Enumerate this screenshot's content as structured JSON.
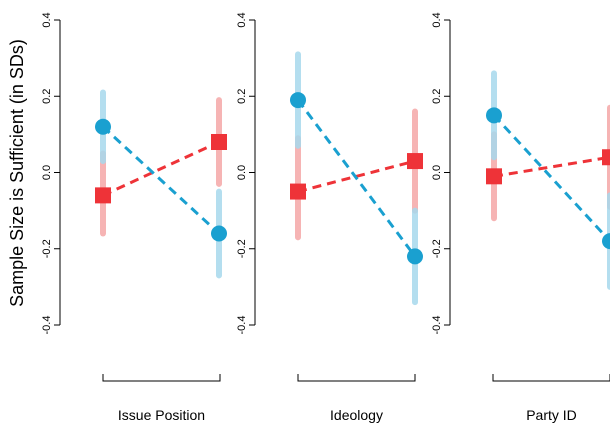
{
  "chart_data": {
    "type": "scatter",
    "ylabel": "Sample Size is Sufficient (in SDs)",
    "ylim": [
      -0.4,
      0.4
    ],
    "yticks": [
      "-0.4",
      "-0.2",
      "0.0",
      "0.2",
      "0.4"
    ],
    "yticks_values": [
      -0.4,
      -0.2,
      0.0,
      0.2,
      0.4
    ],
    "colors": {
      "blue_series": "#1aa0d0",
      "blue_ci": "#a7d9ed",
      "red_series": "#ee3338",
      "red_ci": "#f5a8a8"
    },
    "panels": [
      {
        "label": "Issue Position",
        "blue": {
          "values": [
            0.12,
            -0.16
          ],
          "ci": [
            [
              0.21,
              0.03
            ],
            [
              -0.05,
              -0.27
            ]
          ]
        },
        "red": {
          "values": [
            -0.06,
            0.08
          ],
          "ci": [
            [
              0.05,
              -0.16
            ],
            [
              0.19,
              -0.03
            ]
          ]
        }
      },
      {
        "label": "Ideology",
        "blue": {
          "values": [
            0.19,
            -0.22
          ],
          "ci": [
            [
              0.31,
              0.07
            ],
            [
              -0.1,
              -0.34
            ]
          ]
        },
        "red": {
          "values": [
            -0.05,
            0.03
          ],
          "ci": [
            [
              0.09,
              -0.17
            ],
            [
              0.16,
              -0.1
            ]
          ]
        }
      },
      {
        "label": "Party ID",
        "blue": {
          "values": [
            0.15,
            -0.18
          ],
          "ci": [
            [
              0.26,
              0.04
            ],
            [
              -0.06,
              -0.3
            ]
          ]
        },
        "red": {
          "values": [
            -0.01,
            0.04
          ],
          "ci": [
            [
              0.1,
              -0.12
            ],
            [
              0.17,
              -0.09
            ]
          ]
        }
      }
    ]
  }
}
